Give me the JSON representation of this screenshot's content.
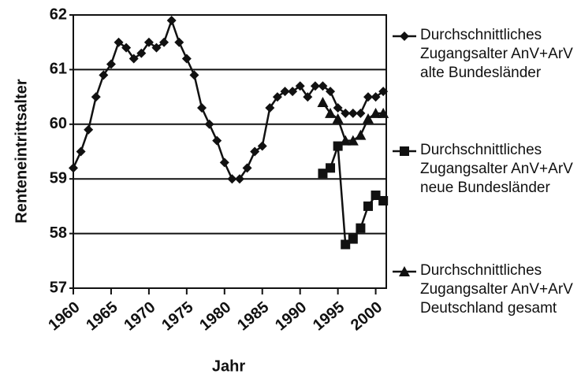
{
  "chart_data": {
    "type": "line",
    "y_label": "Renteneintrittsalter",
    "x_label": "Jahr",
    "xlim": [
      1960,
      2001.4
    ],
    "xticks": [
      1960,
      1965,
      1970,
      1975,
      1980,
      1985,
      1990,
      1995,
      2000
    ],
    "ylim": [
      57,
      62
    ],
    "yticks": [
      57,
      58,
      59,
      60,
      61,
      62
    ],
    "grid": true,
    "legend": "right",
    "series": [
      {
        "name": "Durchschnittliches Zugangsalter AnV+ArV alte Bundesländer",
        "color": "#111111",
        "marker": "diamond",
        "x": [
          1960,
          1961,
          1962,
          1963,
          1964,
          1965,
          1966,
          1967,
          1968,
          1969,
          1970,
          1971,
          1972,
          1973,
          1974,
          1975,
          1976,
          1977,
          1978,
          1979,
          1980,
          1981,
          1982,
          1983,
          1984,
          1985,
          1986,
          1987,
          1988,
          1989,
          1990,
          1991,
          1992,
          1993,
          1994,
          1995,
          1996,
          1997,
          1998,
          1999,
          2000,
          2001
        ],
        "values": [
          59.2,
          59.5,
          59.9,
          60.5,
          60.9,
          61.1,
          61.5,
          61.4,
          61.2,
          61.3,
          61.5,
          61.4,
          61.5,
          61.9,
          61.5,
          61.2,
          60.9,
          60.3,
          60.0,
          59.7,
          59.3,
          59.0,
          59.0,
          59.2,
          59.5,
          59.6,
          60.3,
          60.5,
          60.6,
          60.6,
          60.7,
          60.5,
          60.7,
          60.7,
          60.6,
          60.3,
          60.2,
          60.2,
          60.2,
          60.5,
          60.5,
          60.6
        ]
      },
      {
        "name": "Durchschnittliches Zugangsalter AnV+ArV neue Bundesländer",
        "color": "#111111",
        "marker": "square",
        "x": [
          1993,
          1994,
          1995,
          1996,
          1997,
          1998,
          1999,
          2000,
          2001
        ],
        "values": [
          59.1,
          59.2,
          59.6,
          57.8,
          57.9,
          58.1,
          58.5,
          58.7,
          58.6
        ]
      },
      {
        "name": "Durchschnittliches Zugangsalter AnV+ArV Deutschland gesamt",
        "color": "#111111",
        "marker": "triangle",
        "x": [
          1993,
          1994,
          1995,
          1996,
          1997,
          1998,
          1999,
          2000,
          2001
        ],
        "values": [
          60.4,
          60.2,
          60.1,
          59.7,
          59.7,
          59.8,
          60.1,
          60.2,
          60.2
        ]
      }
    ]
  }
}
